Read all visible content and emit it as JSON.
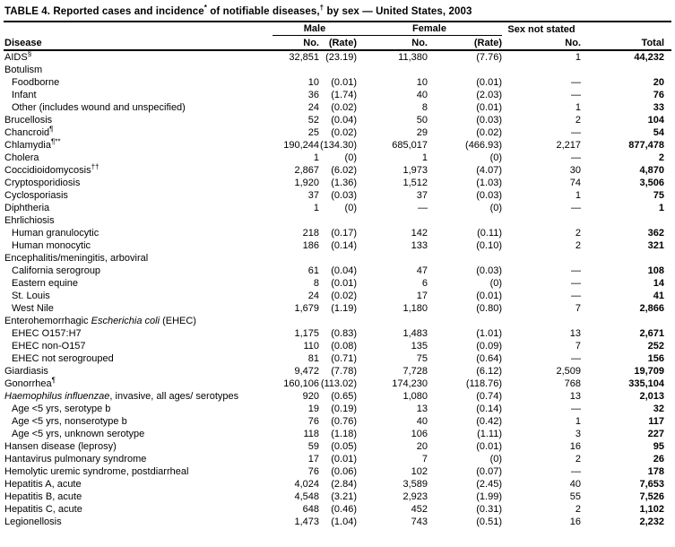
{
  "title": {
    "p1": "TABLE 4. Reported cases and incidence",
    "s1": "*",
    "p2": " of notifiable diseases,",
    "s2": "†",
    "p3": " by sex — United States, 2003"
  },
  "columns": {
    "disease": "Disease",
    "male": "Male",
    "female": "Female",
    "sex_not_stated": "Sex not stated",
    "no": "No.",
    "rate": "(Rate)",
    "total": "Total"
  },
  "rows": [
    {
      "parts": [
        {
          "text": "AIDS"
        }
      ],
      "sup": "§",
      "indent": false,
      "group": false,
      "male_no": "32,851",
      "male_rate": "(23.19)",
      "female_no": "11,380",
      "female_rate": "(7.76)",
      "sns_no": "1",
      "total": "44,232"
    },
    {
      "parts": [
        {
          "text": "Botulism"
        }
      ],
      "sup": "",
      "indent": false,
      "group": true,
      "male_no": "",
      "male_rate": "",
      "female_no": "",
      "female_rate": "",
      "sns_no": "",
      "total": ""
    },
    {
      "parts": [
        {
          "text": "Foodborne"
        }
      ],
      "sup": "",
      "indent": true,
      "group": false,
      "male_no": "10",
      "male_rate": "(0.01)",
      "female_no": "10",
      "female_rate": "(0.01)",
      "sns_no": "—",
      "total": "20"
    },
    {
      "parts": [
        {
          "text": "Infant"
        }
      ],
      "sup": "",
      "indent": true,
      "group": false,
      "male_no": "36",
      "male_rate": "(1.74)",
      "female_no": "40",
      "female_rate": "(2.03)",
      "sns_no": "—",
      "total": "76"
    },
    {
      "parts": [
        {
          "text": "Other (includes wound and unspecified)"
        }
      ],
      "sup": "",
      "indent": true,
      "group": false,
      "male_no": "24",
      "male_rate": "(0.02)",
      "female_no": "8",
      "female_rate": "(0.01)",
      "sns_no": "1",
      "total": "33"
    },
    {
      "parts": [
        {
          "text": "Brucellosis"
        }
      ],
      "sup": "",
      "indent": false,
      "group": false,
      "male_no": "52",
      "male_rate": "(0.04)",
      "female_no": "50",
      "female_rate": "(0.03)",
      "sns_no": "2",
      "total": "104"
    },
    {
      "parts": [
        {
          "text": "Chancroid"
        }
      ],
      "sup": "¶",
      "indent": false,
      "group": false,
      "male_no": "25",
      "male_rate": "(0.02)",
      "female_no": "29",
      "female_rate": "(0.02)",
      "sns_no": "—",
      "total": "54"
    },
    {
      "parts": [
        {
          "text": "Chlamydia"
        }
      ],
      "sup": "¶**",
      "indent": false,
      "group": false,
      "male_no": "190,244",
      "male_rate": "(134.30)",
      "female_no": "685,017",
      "female_rate": "(466.93)",
      "sns_no": "2,217",
      "total": "877,478"
    },
    {
      "parts": [
        {
          "text": "Cholera"
        }
      ],
      "sup": "",
      "indent": false,
      "group": false,
      "male_no": "1",
      "male_rate": "(0)",
      "female_no": "1",
      "female_rate": "(0)",
      "sns_no": "—",
      "total": "2"
    },
    {
      "parts": [
        {
          "text": "Coccidioidomycosis"
        }
      ],
      "sup": "††",
      "indent": false,
      "group": false,
      "male_no": "2,867",
      "male_rate": "(6.02)",
      "female_no": "1,973",
      "female_rate": "(4.07)",
      "sns_no": "30",
      "total": "4,870"
    },
    {
      "parts": [
        {
          "text": "Cryptosporidiosis"
        }
      ],
      "sup": "",
      "indent": false,
      "group": false,
      "male_no": "1,920",
      "male_rate": "(1.36)",
      "female_no": "1,512",
      "female_rate": "(1.03)",
      "sns_no": "74",
      "total": "3,506"
    },
    {
      "parts": [
        {
          "text": "Cyclosporiasis"
        }
      ],
      "sup": "",
      "indent": false,
      "group": false,
      "male_no": "37",
      "male_rate": "(0.03)",
      "female_no": "37",
      "female_rate": "(0.03)",
      "sns_no": "1",
      "total": "75"
    },
    {
      "parts": [
        {
          "text": "Diphtheria"
        }
      ],
      "sup": "",
      "indent": false,
      "group": false,
      "male_no": "1",
      "male_rate": "(0)",
      "female_no": "—",
      "female_rate": "(0)",
      "sns_no": "—",
      "total": "1"
    },
    {
      "parts": [
        {
          "text": "Ehrlichiosis"
        }
      ],
      "sup": "",
      "indent": false,
      "group": true,
      "male_no": "",
      "male_rate": "",
      "female_no": "",
      "female_rate": "",
      "sns_no": "",
      "total": ""
    },
    {
      "parts": [
        {
          "text": "Human granulocytic"
        }
      ],
      "sup": "",
      "indent": true,
      "group": false,
      "male_no": "218",
      "male_rate": "(0.17)",
      "female_no": "142",
      "female_rate": "(0.11)",
      "sns_no": "2",
      "total": "362"
    },
    {
      "parts": [
        {
          "text": "Human monocytic"
        }
      ],
      "sup": "",
      "indent": true,
      "group": false,
      "male_no": "186",
      "male_rate": "(0.14)",
      "female_no": "133",
      "female_rate": "(0.10)",
      "sns_no": "2",
      "total": "321"
    },
    {
      "parts": [
        {
          "text": "Encephalitis/meningitis, arboviral"
        }
      ],
      "sup": "",
      "indent": false,
      "group": true,
      "male_no": "",
      "male_rate": "",
      "female_no": "",
      "female_rate": "",
      "sns_no": "",
      "total": ""
    },
    {
      "parts": [
        {
          "text": "California serogroup"
        }
      ],
      "sup": "",
      "indent": true,
      "group": false,
      "male_no": "61",
      "male_rate": "(0.04)",
      "female_no": "47",
      "female_rate": "(0.03)",
      "sns_no": "—",
      "total": "108"
    },
    {
      "parts": [
        {
          "text": "Eastern equine"
        }
      ],
      "sup": "",
      "indent": true,
      "group": false,
      "male_no": "8",
      "male_rate": "(0.01)",
      "female_no": "6",
      "female_rate": "(0)",
      "sns_no": "—",
      "total": "14"
    },
    {
      "parts": [
        {
          "text": "St. Louis"
        }
      ],
      "sup": "",
      "indent": true,
      "group": false,
      "male_no": "24",
      "male_rate": "(0.02)",
      "female_no": "17",
      "female_rate": "(0.01)",
      "sns_no": "—",
      "total": "41"
    },
    {
      "parts": [
        {
          "text": "West Nile"
        }
      ],
      "sup": "",
      "indent": true,
      "group": false,
      "male_no": "1,679",
      "male_rate": "(1.19)",
      "female_no": "1,180",
      "female_rate": "(0.80)",
      "sns_no": "7",
      "total": "2,866"
    },
    {
      "parts": [
        {
          "text": "Enterohemorrhagic "
        },
        {
          "text": "Escherichia coli",
          "italic": true
        },
        {
          "text": " (EHEC)"
        }
      ],
      "sup": "",
      "indent": false,
      "group": true,
      "male_no": "",
      "male_rate": "",
      "female_no": "",
      "female_rate": "",
      "sns_no": "",
      "total": ""
    },
    {
      "parts": [
        {
          "text": "EHEC O157:H7"
        }
      ],
      "sup": "",
      "indent": true,
      "group": false,
      "male_no": "1,175",
      "male_rate": "(0.83)",
      "female_no": "1,483",
      "female_rate": "(1.01)",
      "sns_no": "13",
      "total": "2,671"
    },
    {
      "parts": [
        {
          "text": "EHEC non-O157"
        }
      ],
      "sup": "",
      "indent": true,
      "group": false,
      "male_no": "110",
      "male_rate": "(0.08)",
      "female_no": "135",
      "female_rate": "(0.09)",
      "sns_no": "7",
      "total": "252"
    },
    {
      "parts": [
        {
          "text": "EHEC not serogrouped"
        }
      ],
      "sup": "",
      "indent": true,
      "group": false,
      "male_no": "81",
      "male_rate": "(0.71)",
      "female_no": "75",
      "female_rate": "(0.64)",
      "sns_no": "—",
      "total": "156"
    },
    {
      "parts": [
        {
          "text": "Giardiasis"
        }
      ],
      "sup": "",
      "indent": false,
      "group": false,
      "male_no": "9,472",
      "male_rate": "(7.78)",
      "female_no": "7,728",
      "female_rate": "(6.12)",
      "sns_no": "2,509",
      "total": "19,709"
    },
    {
      "parts": [
        {
          "text": "Gonorrhea"
        }
      ],
      "sup": "¶",
      "indent": false,
      "group": false,
      "male_no": "160,106",
      "male_rate": "(113.02)",
      "female_no": "174,230",
      "female_rate": "(118.76)",
      "sns_no": "768",
      "total": "335,104"
    },
    {
      "parts": [
        {
          "text": "Haemophilus influenzae",
          "italic": true
        },
        {
          "text": ", invasive, all ages/ serotypes"
        }
      ],
      "sup": "",
      "indent": false,
      "group": false,
      "male_no": "920",
      "male_rate": "(0.65)",
      "female_no": "1,080",
      "female_rate": "(0.74)",
      "sns_no": "13",
      "total": "2,013"
    },
    {
      "parts": [
        {
          "text": "Age <5 yrs, serotype b"
        }
      ],
      "sup": "",
      "indent": true,
      "group": false,
      "male_no": "19",
      "male_rate": "(0.19)",
      "female_no": "13",
      "female_rate": "(0.14)",
      "sns_no": "—",
      "total": "32"
    },
    {
      "parts": [
        {
          "text": "Age <5 yrs, nonserotype b"
        }
      ],
      "sup": "",
      "indent": true,
      "group": false,
      "male_no": "76",
      "male_rate": "(0.76)",
      "female_no": "40",
      "female_rate": "(0.42)",
      "sns_no": "1",
      "total": "117"
    },
    {
      "parts": [
        {
          "text": "Age <5 yrs, unknown serotype"
        }
      ],
      "sup": "",
      "indent": true,
      "group": false,
      "male_no": "118",
      "male_rate": "(1.18)",
      "female_no": "106",
      "female_rate": "(1.11)",
      "sns_no": "3",
      "total": "227"
    },
    {
      "parts": [
        {
          "text": "Hansen disease (leprosy)"
        }
      ],
      "sup": "",
      "indent": false,
      "group": false,
      "male_no": "59",
      "male_rate": "(0.05)",
      "female_no": "20",
      "female_rate": "(0.01)",
      "sns_no": "16",
      "total": "95"
    },
    {
      "parts": [
        {
          "text": "Hantavirus pulmonary syndrome"
        }
      ],
      "sup": "",
      "indent": false,
      "group": false,
      "male_no": "17",
      "male_rate": "(0.01)",
      "female_no": "7",
      "female_rate": "(0)",
      "sns_no": "2",
      "total": "26"
    },
    {
      "parts": [
        {
          "text": "Hemolytic uremic syndrome, postdiarrheal"
        }
      ],
      "sup": "",
      "indent": false,
      "group": false,
      "male_no": "76",
      "male_rate": "(0.06)",
      "female_no": "102",
      "female_rate": "(0.07)",
      "sns_no": "—",
      "total": "178"
    },
    {
      "parts": [
        {
          "text": "Hepatitis A, acute"
        }
      ],
      "sup": "",
      "indent": false,
      "group": false,
      "male_no": "4,024",
      "male_rate": "(2.84)",
      "female_no": "3,589",
      "female_rate": "(2.45)",
      "sns_no": "40",
      "total": "7,653"
    },
    {
      "parts": [
        {
          "text": "Hepatitis B, acute"
        }
      ],
      "sup": "",
      "indent": false,
      "group": false,
      "male_no": "4,548",
      "male_rate": "(3.21)",
      "female_no": "2,923",
      "female_rate": "(1.99)",
      "sns_no": "55",
      "total": "7,526"
    },
    {
      "parts": [
        {
          "text": "Hepatitis C, acute"
        }
      ],
      "sup": "",
      "indent": false,
      "group": false,
      "male_no": "648",
      "male_rate": "(0.46)",
      "female_no": "452",
      "female_rate": "(0.31)",
      "sns_no": "2",
      "total": "1,102"
    },
    {
      "parts": [
        {
          "text": "Legionellosis"
        }
      ],
      "sup": "",
      "indent": false,
      "group": false,
      "male_no": "1,473",
      "male_rate": "(1.04)",
      "female_no": "743",
      "female_rate": "(0.51)",
      "sns_no": "16",
      "total": "2,232"
    }
  ]
}
